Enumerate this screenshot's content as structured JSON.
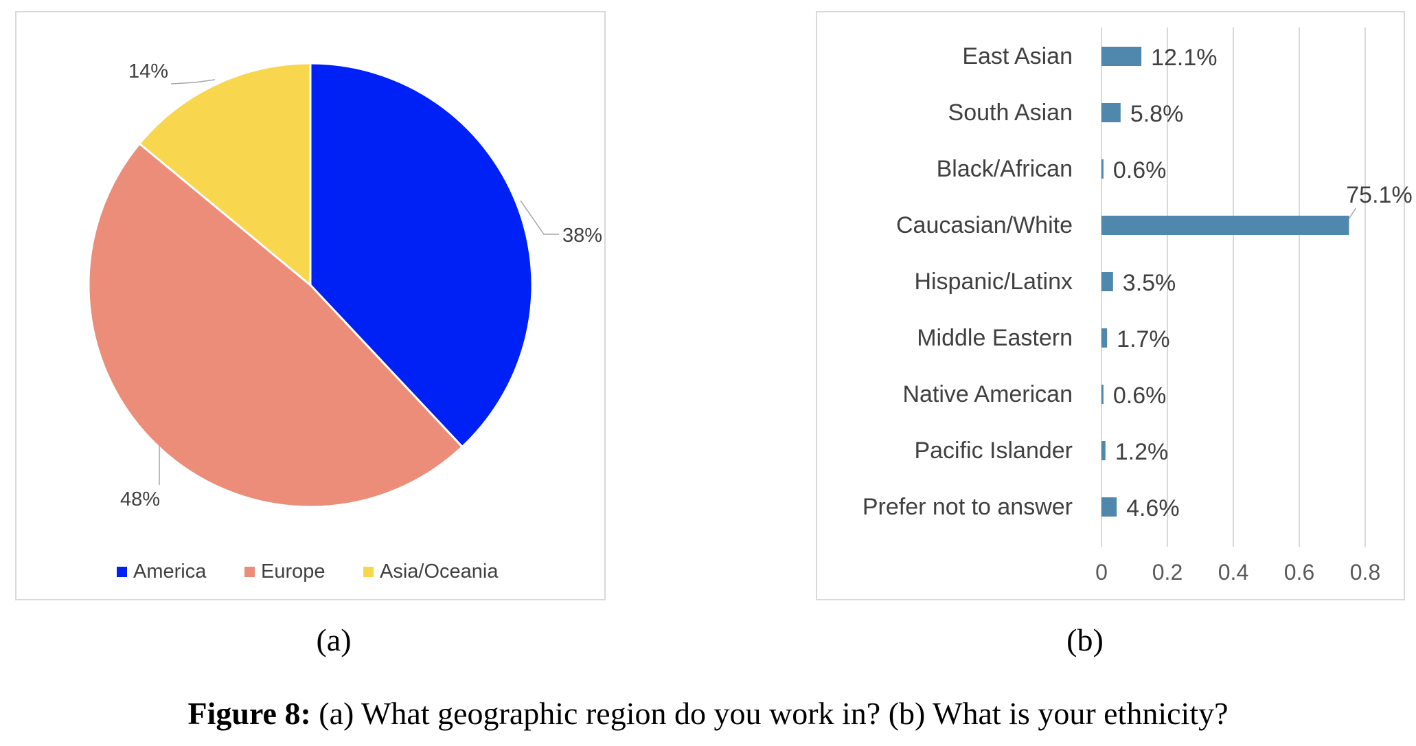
{
  "chart_data": [
    {
      "type": "pie",
      "categories": [
        "America",
        "Europe",
        "Asia/Oceania"
      ],
      "values": [
        38,
        48,
        14
      ],
      "data_labels": [
        "38%",
        "48%",
        "14%"
      ],
      "colors": [
        "#0021f5",
        "#ec8d79",
        "#f8d64e"
      ],
      "legend": "bottom"
    },
    {
      "type": "bar",
      "orientation": "horizontal",
      "categories": [
        "East Asian",
        "South Asian",
        "Black/African",
        "Caucasian/White",
        "Hispanic/Latinx",
        "Middle Eastern",
        "Native American",
        "Pacific Islander",
        "Prefer not to answer"
      ],
      "values": [
        0.121,
        0.058,
        0.006,
        0.751,
        0.035,
        0.017,
        0.006,
        0.012,
        0.046
      ],
      "data_labels": [
        "12.1%",
        "5.8%",
        "0.6%",
        "75.1%",
        "3.5%",
        "1.7%",
        "0.6%",
        "1.2%",
        "4.6%"
      ],
      "xlim": [
        0,
        0.8
      ],
      "xticks": [
        "0",
        "0.2",
        "0.4",
        "0.6",
        "0.8"
      ],
      "grid": true,
      "color": "#4f87ad"
    }
  ],
  "sublabels": {
    "a": "(a)",
    "b": "(b)"
  },
  "caption": {
    "bold": "Figure 8:",
    "text": " (a) What geographic region do you work in? (b) What is your ethnicity?"
  }
}
